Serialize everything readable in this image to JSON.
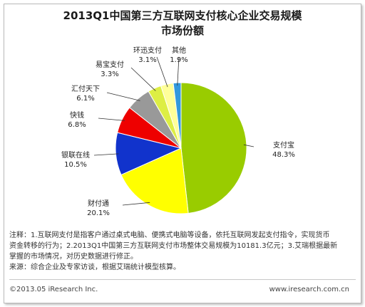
{
  "header": {
    "title_line1": "2013Q1中国第三方互联网支付核心企业交易规模",
    "title_line2": "市场份额"
  },
  "chart_data": {
    "type": "pie",
    "title": "2013Q1中国第三方互联网支付核心企业交易规模市场份额",
    "slices": [
      {
        "label": "支付宝",
        "value": 48.3,
        "display": "48.3%",
        "color": "#99cc00"
      },
      {
        "label": "财付通",
        "value": 20.1,
        "display": "20.1%",
        "color": "#ffff00"
      },
      {
        "label": "银联在线",
        "value": 10.5,
        "display": "10.5%",
        "color": "#1133cc"
      },
      {
        "label": "快钱",
        "value": 6.8,
        "display": "6.8%",
        "color": "#ee0000"
      },
      {
        "label": "汇付天下",
        "value": 6.1,
        "display": "6.1%",
        "color": "#999999"
      },
      {
        "label": "易宝支付",
        "value": 3.3,
        "display": "3.3%",
        "color": "#ddee44"
      },
      {
        "label": "环迅支付",
        "value": 3.1,
        "display": "3.1%",
        "color": "#ffff99"
      },
      {
        "label": "其他",
        "value": 1.9,
        "display": "1.9%",
        "color": "#3399dd"
      }
    ]
  },
  "notes": {
    "line1": "注释：1.互联网支付是指客户通过桌式电脑、便携式电脑等设备，依托互联网发起支付指令，实现货币",
    "line2": "资金转移的行为；2.2013Q1中国第三方互联网支付市场整体交易规模为10181.3亿元；3.艾瑞根据最新",
    "line3": "掌握的市场情况，对历史数据进行修正。",
    "line4": "来源：综合企业及专家访谈，根据艾瑞统计模型核算。"
  },
  "footer": {
    "copyright": "©2013.05 iResearch Inc.",
    "website": "www.iresearch.com.cn"
  }
}
